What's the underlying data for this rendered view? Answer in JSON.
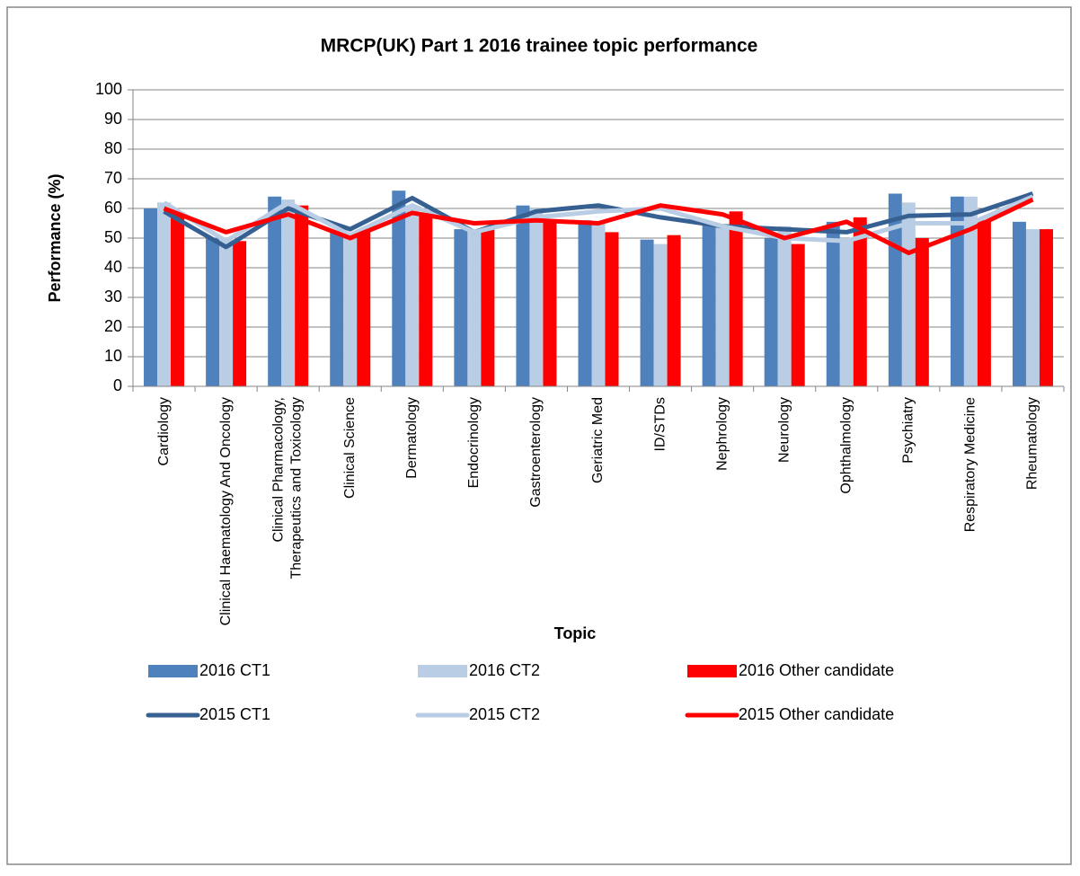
{
  "chart_data": {
    "type": "bar-line",
    "title": "MRCP(UK) Part 1 2016 trainee topic performance",
    "x_label": "Topic",
    "y_label": "Performance (%)",
    "categories": [
      "Cardiology",
      "Clinical Haematology And Oncology",
      "Clinical Pharmacology, Therapeutics and Toxicology",
      "Clinical Science",
      "Dermatology",
      "Endocrinology",
      "Gastroenterology",
      "Geriatric Med",
      "ID/STDs",
      "Nephrology",
      "Neurology",
      "Ophthalmology",
      "Psychiatry",
      "Respiratory Medicine",
      "Rheumatology"
    ],
    "series": [
      {
        "name": "2016 CT1",
        "type": "bar",
        "color": "#4f81bd",
        "values": [
          60,
          50,
          64,
          52,
          66,
          53,
          61,
          56,
          49.5,
          55,
          50,
          55.5,
          65,
          64,
          55.5
        ]
      },
      {
        "name": "2016 CT2",
        "type": "bar",
        "color": "#b9cde5",
        "values": [
          62,
          50,
          63,
          51,
          61,
          52,
          60,
          55,
          48,
          54,
          54,
          50,
          62,
          64,
          53
        ]
      },
      {
        "name": "2016 Other candidate",
        "type": "bar",
        "color": "#ff0000",
        "values": [
          58,
          49,
          61,
          52,
          58,
          53,
          56,
          52,
          51,
          59,
          48,
          57,
          50,
          56,
          53
        ]
      },
      {
        "name": "2015 CT1",
        "type": "line",
        "color": "#376092",
        "values": [
          59,
          47,
          60,
          53,
          63.5,
          52,
          59,
          61,
          57,
          54,
          53,
          52,
          57.5,
          58,
          65
        ]
      },
      {
        "name": "2015 CT2",
        "type": "line",
        "color": "#b9cde5",
        "values": [
          62,
          49,
          62,
          51,
          61,
          52,
          57,
          59,
          60,
          54,
          50,
          49,
          55,
          55,
          64
        ]
      },
      {
        "name": "2015 Other candidate",
        "type": "line",
        "color": "#ff0000",
        "values": [
          60,
          52,
          58,
          50,
          58.5,
          55,
          56,
          55,
          61,
          58,
          50,
          55.5,
          45,
          53,
          63
        ]
      }
    ],
    "ylim": [
      0,
      100
    ],
    "yticks": [
      0,
      10,
      20,
      30,
      40,
      50,
      60,
      70,
      80,
      90,
      100
    ],
    "grid": true
  }
}
